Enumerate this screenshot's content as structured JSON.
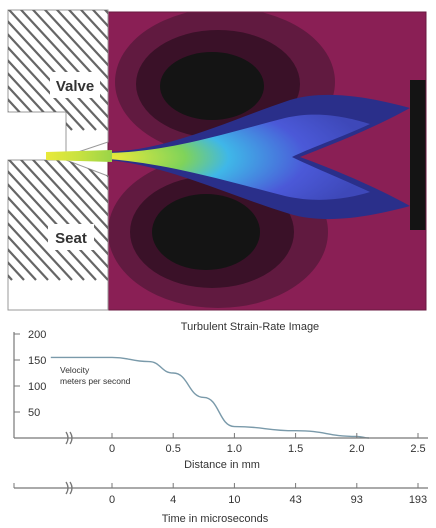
{
  "figure": {
    "valve_label": "Valve",
    "seat_label": "Seat",
    "image_caption": "Turbulent Strain-Rate Image",
    "colors": {
      "background": "#ffffff",
      "hatch": "#666666",
      "plot_outer": "#8a1f55",
      "plot_dark": "#141414",
      "jet_blue": "#4b59d8",
      "jet_cyan": "#3fb7e8",
      "jet_yellow": "#e9e93a",
      "axis": "#777777"
    }
  },
  "velocity_chart": {
    "ylabel_line1": "Velocity",
    "ylabel_line2": "meters per second",
    "yticks": [
      "200",
      "150",
      "100",
      "50"
    ],
    "curve_points": [
      {
        "x": -0.5,
        "y": 155
      },
      {
        "x": 0,
        "y": 155
      },
      {
        "x": 0.3,
        "y": 147
      },
      {
        "x": 0.5,
        "y": 125
      },
      {
        "x": 0.75,
        "y": 78
      },
      {
        "x": 1.0,
        "y": 22
      },
      {
        "x": 1.5,
        "y": 14
      },
      {
        "x": 2.0,
        "y": 3
      },
      {
        "x": 2.1,
        "y": 0
      }
    ]
  },
  "distance_axis": {
    "ticks": [
      "0",
      "0.5",
      "1.0",
      "1.5",
      "2.0",
      "2.5"
    ],
    "label": "Distance in mm"
  },
  "time_axis": {
    "ticks": [
      "0",
      "4",
      "10",
      "43",
      "93",
      "193"
    ],
    "label": "Time in microseconds"
  }
}
